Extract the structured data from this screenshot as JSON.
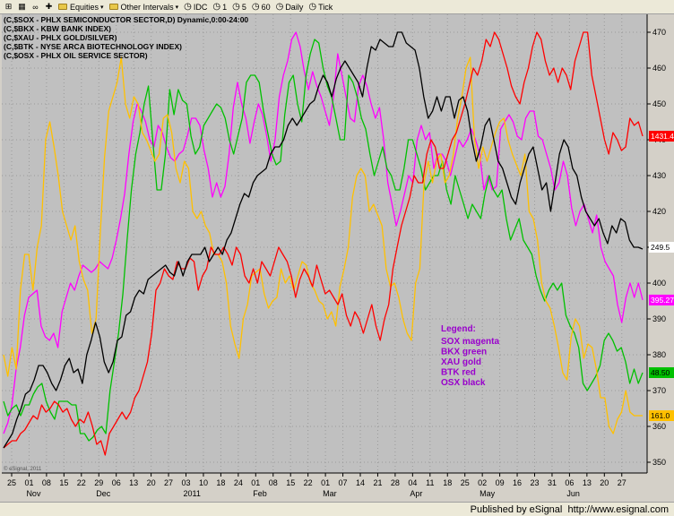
{
  "toolbar": {
    "equities_label": "Equities",
    "other_intervals_label": "Other Intervals",
    "idc_label": "IDC",
    "intervals": [
      "1",
      "5",
      "60",
      "Daily",
      "Tick"
    ]
  },
  "status": {
    "published": "Published by eSignal",
    "url": "http://www.esignal.com"
  },
  "watermark": "© eSignal, 2011",
  "chart_data": {
    "type": "line",
    "title_lines": [
      "(C,$SOX - PHLX SEMICONDUCTOR SECTOR,D) Dynamic,0:00-24:00",
      "(C,$BKX - KBW BANK INDEX)",
      "(C,$XAU - PHLX GOLD/SILVER)",
      "(C,$BTK - NYSE ARCA BIOTECHNOLOGY INDEX)",
      "(C,$OSX - PHLX OIL SERVICE SECTOR)"
    ],
    "ylim": [
      347,
      475
    ],
    "y_ticks": [
      350,
      360,
      370,
      380,
      390,
      400,
      410,
      420,
      430,
      440,
      450,
      460,
      470
    ],
    "x_tick_labels": [
      "25",
      "01",
      "08",
      "15",
      "22",
      "29",
      "06",
      "13",
      "20",
      "27",
      "03",
      "10",
      "18",
      "24",
      "01",
      "08",
      "15",
      "22",
      "01",
      "07",
      "14",
      "21",
      "28",
      "04",
      "11",
      "18",
      "25",
      "02",
      "09",
      "16",
      "23",
      "31",
      "06",
      "13",
      "20",
      "27"
    ],
    "month_labels": [
      {
        "label": "Nov",
        "at": "01"
      },
      {
        "label": "Dec",
        "at": "29"
      },
      {
        "label": "2011",
        "at": "03"
      },
      {
        "label": "Feb",
        "at": "01"
      },
      {
        "label": "Mar",
        "at": "01"
      },
      {
        "label": "Apr",
        "at": "04"
      },
      {
        "label": "May",
        "at": "02"
      },
      {
        "label": "Jun",
        "at": "06"
      }
    ],
    "grid": true,
    "legend": {
      "placement": "lower-right",
      "title": "Legend:",
      "entries": [
        "SOX magenta",
        "BKX green",
        "XAU gold",
        "BTK red",
        "OSX black"
      ]
    },
    "series": [
      {
        "name": "SOX",
        "color": "#ff00ff",
        "last_label": "395.27",
        "last_value": 395.27,
        "values": [
          358,
          361,
          366,
          376,
          382,
          391,
          396,
          397,
          398,
          388,
          385,
          384,
          386,
          382,
          392,
          396,
          400,
          398,
          402,
          405,
          404,
          403,
          404,
          406,
          405,
          404,
          407,
          412,
          418,
          425,
          436,
          445,
          450,
          448,
          445,
          440,
          438,
          444,
          442,
          438,
          435,
          434,
          436,
          437,
          441,
          446,
          446,
          444,
          437,
          432,
          424,
          428,
          424,
          427,
          436,
          449,
          456,
          450,
          446,
          439,
          445,
          450,
          447,
          441,
          434,
          440,
          452,
          458,
          462,
          468,
          470,
          466,
          459,
          454,
          459,
          455,
          452,
          448,
          444,
          452,
          464,
          458,
          452,
          446,
          445,
          455,
          458,
          455,
          450,
          446,
          449,
          440,
          428,
          422,
          416,
          420,
          425,
          430,
          428,
          440,
          444,
          440,
          442,
          432,
          436,
          436,
          434,
          430,
          435,
          440,
          438,
          440,
          443,
          440,
          436,
          426,
          430,
          426,
          427,
          443,
          445,
          447,
          445,
          441,
          440,
          446,
          448,
          448,
          441,
          440,
          436,
          432,
          426,
          428,
          434,
          430,
          421,
          416,
          420,
          422,
          418,
          414,
          419,
          410,
          406,
          404,
          402,
          394,
          389,
          396,
          400,
          396,
          400,
          395.27
        ]
      },
      {
        "name": "BKX",
        "color": "#00c000",
        "last_label": "48.50",
        "last_value": 375,
        "values": [
          367,
          363,
          365,
          366,
          363,
          366,
          366,
          369,
          371,
          372,
          367,
          364,
          362,
          367,
          367,
          367,
          366,
          366,
          358,
          358,
          356,
          357,
          359,
          360,
          358,
          370,
          378,
          386,
          397,
          412,
          426,
          436,
          442,
          450,
          455,
          440,
          426,
          426,
          436,
          454,
          447,
          454,
          451,
          450,
          441,
          436,
          438,
          444,
          446,
          448,
          450,
          449,
          446,
          440,
          436,
          441,
          446,
          456,
          458,
          458,
          456,
          448,
          442,
          436,
          433,
          434,
          447,
          456,
          458,
          450,
          445,
          458,
          464,
          468,
          467,
          460,
          455,
          452,
          446,
          440,
          440,
          458,
          456,
          452,
          446,
          443,
          436,
          430,
          434,
          438,
          432,
          430,
          426,
          426,
          432,
          440,
          440,
          436,
          432,
          426,
          428,
          430,
          430,
          434,
          426,
          422,
          430,
          426,
          422,
          418,
          422,
          420,
          418,
          425,
          430,
          426,
          424,
          426,
          418,
          412,
          415,
          418,
          412,
          410,
          408,
          402,
          398,
          395,
          398,
          400,
          398,
          400,
          391,
          388,
          386,
          382,
          372,
          370,
          372,
          374,
          377,
          384,
          386,
          384,
          381,
          382,
          378,
          372,
          376,
          372,
          375
        ]
      },
      {
        "name": "XAU",
        "color": "#ffc000",
        "last_label": "161.0",
        "last_value": 363,
        "values": [
          380,
          374,
          382,
          376,
          398,
          408,
          408,
          398,
          410,
          416,
          440,
          445,
          438,
          430,
          420,
          416,
          412,
          416,
          406,
          401,
          398,
          386,
          390,
          414,
          435,
          448,
          452,
          456,
          463,
          450,
          446,
          452,
          450,
          442,
          440,
          437,
          434,
          436,
          446,
          447,
          442,
          432,
          428,
          434,
          432,
          420,
          418,
          420,
          416,
          414,
          408,
          408,
          406,
          400,
          388,
          383,
          379,
          390,
          394,
          402,
          403,
          404,
          397,
          393,
          395,
          396,
          404,
          400,
          402,
          398,
          402,
          406,
          405,
          400,
          398,
          395,
          394,
          390,
          392,
          388,
          399,
          404,
          410,
          424,
          430,
          432,
          430,
          420,
          422,
          419,
          416,
          404,
          399,
          400,
          396,
          390,
          386,
          384,
          400,
          404,
          428,
          434,
          428,
          434,
          436,
          428,
          430,
          436,
          446,
          452,
          460,
          463,
          440,
          432,
          438,
          434,
          438,
          442,
          445,
          446,
          440,
          436,
          433,
          430,
          436,
          420,
          418,
          412,
          400,
          395,
          393,
          388,
          382,
          375,
          373,
          385,
          390,
          388,
          379,
          383,
          382,
          376,
          368,
          368,
          360,
          358,
          362,
          364,
          370,
          364,
          363,
          363,
          363
        ]
      },
      {
        "name": "BTK",
        "color": "#ff0000",
        "last_label": "1431.4",
        "last_value": 441,
        "values": [
          354,
          355,
          356,
          356,
          358,
          359,
          361,
          363,
          362,
          366,
          364,
          365,
          367,
          366,
          364,
          365,
          362,
          360,
          362,
          361,
          364,
          360,
          355,
          356,
          352,
          358,
          360,
          362,
          364,
          362,
          364,
          368,
          370,
          374,
          378,
          386,
          398,
          400,
          404,
          402,
          401,
          406,
          404,
          404,
          407,
          406,
          398,
          402,
          404,
          410,
          408,
          408,
          410,
          408,
          405,
          410,
          408,
          402,
          400,
          404,
          400,
          406,
          404,
          402,
          406,
          410,
          408,
          406,
          402,
          396,
          401,
          404,
          402,
          399,
          405,
          401,
          397,
          398,
          396,
          394,
          397,
          391,
          388,
          392,
          390,
          386,
          390,
          394,
          388,
          384,
          390,
          394,
          404,
          410,
          416,
          420,
          424,
          430,
          428,
          428,
          436,
          440,
          438,
          432,
          432,
          436,
          440,
          442,
          446,
          450,
          455,
          460,
          458,
          462,
          468,
          466,
          470,
          468,
          464,
          460,
          455,
          452,
          450,
          456,
          460,
          466,
          470,
          468,
          462,
          458,
          460,
          456,
          460,
          458,
          454,
          462,
          466,
          470,
          470,
          458,
          452,
          446,
          440,
          436,
          442,
          440,
          437,
          438,
          446,
          444,
          445,
          441
        ]
      },
      {
        "name": "OSX",
        "color": "#000000",
        "last_label": "249.5",
        "last_value": 410,
        "values": [
          354,
          356,
          358,
          362,
          365,
          369,
          370,
          373,
          377,
          377,
          375,
          372,
          370,
          373,
          377,
          379,
          375,
          376,
          372,
          380,
          384,
          389,
          385,
          378,
          375,
          378,
          384,
          385,
          391,
          392,
          396,
          398,
          397,
          401,
          402,
          403,
          404,
          405,
          403,
          402,
          406,
          402,
          406,
          408,
          408,
          408,
          410,
          406,
          408,
          410,
          408,
          412,
          414,
          418,
          422,
          425,
          424,
          428,
          430,
          431,
          432,
          436,
          438,
          438,
          440,
          444,
          446,
          444,
          446,
          448,
          450,
          451,
          455,
          458,
          456,
          452,
          457,
          460,
          462,
          460,
          458,
          456,
          452,
          460,
          466,
          465,
          468,
          467,
          466,
          466,
          470,
          470,
          467,
          466,
          465,
          460,
          452,
          446,
          448,
          452,
          448,
          452,
          452,
          446,
          451,
          452,
          448,
          440,
          434,
          438,
          444,
          446,
          440,
          434,
          432,
          428,
          424,
          422,
          428,
          432,
          436,
          438,
          432,
          426,
          428,
          420,
          428,
          436,
          440,
          438,
          432,
          430,
          424,
          420,
          418,
          416,
          418,
          414,
          411,
          416,
          414,
          418,
          417,
          412,
          410,
          410,
          409.5
        ]
      }
    ]
  }
}
